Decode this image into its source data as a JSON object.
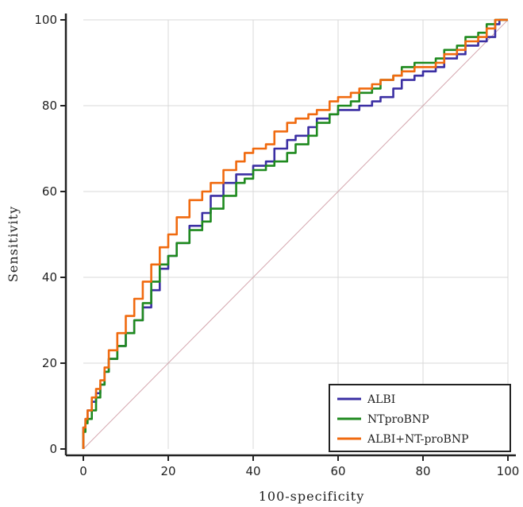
{
  "chart_data": {
    "type": "line",
    "title": "",
    "xlabel": "100-specificity",
    "ylabel": "Sensitivity",
    "xlim": [
      0,
      100
    ],
    "ylim": [
      0,
      100
    ],
    "xticks": [
      0,
      20,
      40,
      60,
      80,
      100
    ],
    "yticks": [
      0,
      20,
      40,
      60,
      80,
      100
    ],
    "grid": true,
    "legend_position": "bottom-right",
    "series": [
      {
        "name": "ALBI",
        "color": "#3b2fa3",
        "x": [
          0,
          0.5,
          1,
          2,
          3,
          4,
          5,
          6,
          8,
          10,
          12,
          14,
          16,
          18,
          20,
          22,
          25,
          28,
          30,
          33,
          36,
          38,
          40,
          43,
          45,
          48,
          50,
          53,
          55,
          58,
          60,
          63,
          65,
          68,
          70,
          73,
          75,
          78,
          80,
          83,
          85,
          88,
          90,
          93,
          95,
          97,
          98,
          100
        ],
        "y": [
          0,
          5,
          7,
          9,
          11,
          13,
          15,
          18,
          21,
          24,
          27,
          30,
          33,
          37,
          42,
          45,
          48,
          52,
          55,
          59,
          62,
          64,
          64,
          66,
          67,
          70,
          72,
          73,
          75,
          77,
          78,
          79,
          79,
          80,
          81,
          82,
          84,
          86,
          87,
          88,
          89,
          91,
          92,
          94,
          95,
          96,
          99,
          100
        ]
      },
      {
        "name": "NTproBNP",
        "color": "#1f8a1f",
        "x": [
          0,
          0.5,
          1,
          2,
          3,
          4,
          5,
          6,
          8,
          10,
          12,
          14,
          16,
          18,
          20,
          22,
          25,
          28,
          30,
          33,
          36,
          38,
          40,
          43,
          45,
          48,
          50,
          53,
          55,
          58,
          60,
          63,
          65,
          68,
          70,
          73,
          75,
          78,
          80,
          83,
          85,
          88,
          90,
          93,
          95,
          97,
          100
        ],
        "y": [
          0,
          4,
          6,
          7,
          9,
          12,
          15,
          18,
          21,
          24,
          27,
          30,
          34,
          39,
          43,
          45,
          48,
          51,
          53,
          56,
          59,
          62,
          63,
          65,
          66,
          67,
          69,
          71,
          73,
          76,
          78,
          80,
          81,
          83,
          84,
          86,
          87,
          89,
          90,
          90,
          91,
          93,
          94,
          96,
          97,
          99,
          100
        ]
      },
      {
        "name": "ALBI+NT-proBNP",
        "color": "#f06a0f",
        "x": [
          0,
          0.5,
          1,
          2,
          3,
          4,
          5,
          6,
          8,
          10,
          12,
          14,
          16,
          18,
          20,
          22,
          25,
          28,
          30,
          33,
          36,
          38,
          40,
          43,
          45,
          48,
          50,
          53,
          55,
          58,
          60,
          63,
          65,
          68,
          70,
          73,
          75,
          78,
          80,
          83,
          85,
          88,
          90,
          93,
          95,
          97,
          100
        ],
        "y": [
          0,
          5,
          7,
          9,
          12,
          14,
          16,
          19,
          23,
          27,
          31,
          35,
          39,
          43,
          47,
          50,
          54,
          58,
          60,
          62,
          65,
          67,
          69,
          70,
          71,
          74,
          76,
          77,
          78,
          79,
          81,
          82,
          83,
          84,
          85,
          86,
          87,
          88,
          89,
          89,
          90,
          92,
          93,
          95,
          96,
          98,
          100
        ]
      }
    ],
    "reference_line": {
      "x": [
        0,
        100
      ],
      "y": [
        0,
        100
      ],
      "color": "#d4a5ad"
    }
  }
}
